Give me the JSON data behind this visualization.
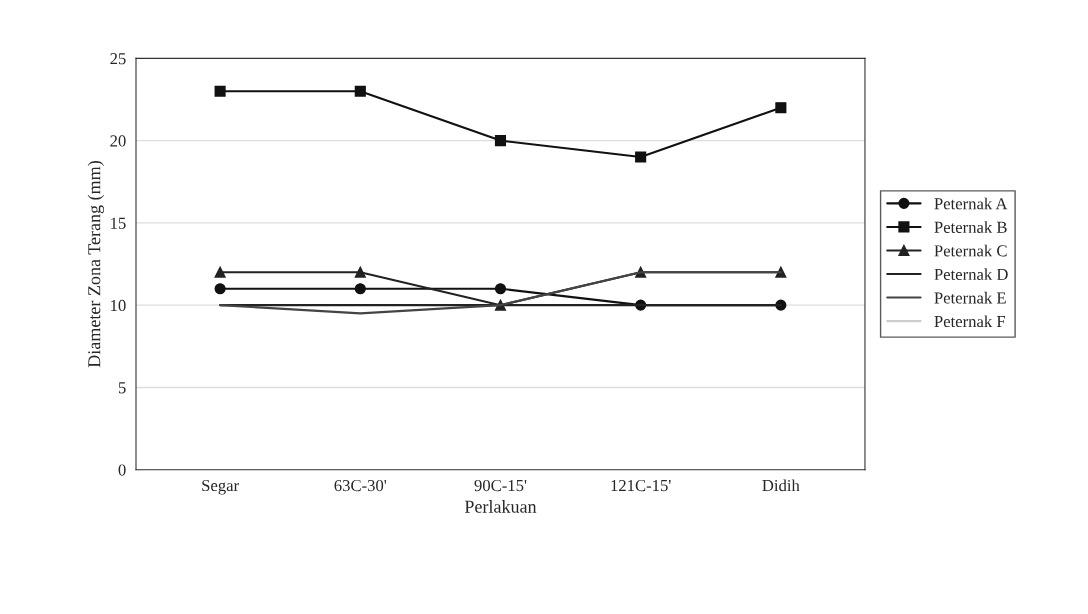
{
  "chart_data": {
    "type": "line",
    "xlabel": "Perlakuan",
    "ylabel": "Diameter Zona Terang (mm)",
    "categories": [
      "Segar",
      "63C-30'",
      "90C-15'",
      "121C-15'",
      "Didih"
    ],
    "series": [
      {
        "name": "Peternak A",
        "color": "#111111",
        "marker": "circle",
        "values": [
          11,
          11,
          11,
          10,
          10
        ]
      },
      {
        "name": "Peternak B",
        "color": "#111111",
        "marker": "square",
        "values": [
          23,
          23,
          20,
          19,
          22
        ]
      },
      {
        "name": "Peternak C",
        "color": "#222222",
        "marker": "triangle",
        "values": [
          12,
          12,
          10,
          12,
          12
        ]
      },
      {
        "name": "Peternak D",
        "color": "#222222",
        "marker": "none",
        "values": [
          10,
          10,
          10,
          10,
          10
        ]
      },
      {
        "name": "Peternak E",
        "color": "#444444",
        "marker": "none",
        "values": [
          10,
          9.5,
          10,
          12,
          12
        ]
      },
      {
        "name": "Peternak F",
        "color": "#cccccc",
        "marker": "none",
        "values": [
          null,
          null,
          null,
          null,
          null
        ]
      }
    ],
    "ylim": [
      0,
      25
    ],
    "yticks": [
      0,
      5,
      10,
      15,
      20,
      25
    ],
    "grid": "y",
    "legend": "right",
    "line_style": "solid"
  }
}
